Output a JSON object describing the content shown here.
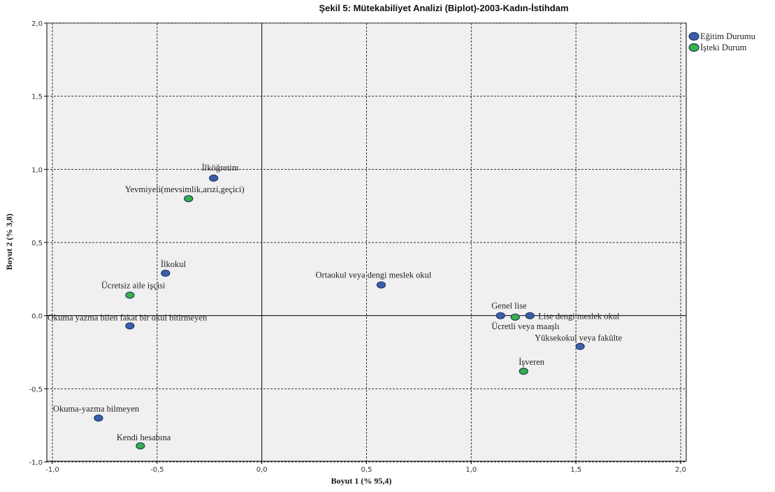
{
  "chart_data": {
    "type": "scatter",
    "title": "Şekil 5: Mütekabiliyet Analizi (Biplot)-2003-Kadın-İstihdam",
    "xlabel": "Boyut 1 (% 95,4)",
    "ylabel": "Boyut 2 (% 3,8)",
    "xlim": [
      -1.0,
      2.0
    ],
    "ylim": [
      -1.0,
      2.0
    ],
    "xticks": [
      "-1,0",
      "-0,5",
      "0,0",
      "0,5",
      "1,0",
      "1,5",
      "2,0"
    ],
    "yticks": [
      "-1,0",
      "-0,5",
      "0,0",
      "0,5",
      "1,0",
      "1,5",
      "2,0"
    ],
    "grid": true,
    "legend_position": "right",
    "series": [
      {
        "name": "Eğitim Durumu",
        "color": "#3b5ea8",
        "points": [
          {
            "label": "İlköğretim",
            "x": -0.23,
            "y": 0.94
          },
          {
            "label": "İlkokul",
            "x": -0.46,
            "y": 0.29
          },
          {
            "label": "Okuma yazma bilen fakat bir okul bitirmeyen",
            "x": -0.63,
            "y": -0.07
          },
          {
            "label": "Okuma-yazma bilmeyen",
            "x": -0.78,
            "y": -0.7
          },
          {
            "label": "Ortaokul veya dengi meslek okul",
            "x": 0.57,
            "y": 0.21
          },
          {
            "label": "Genel lise",
            "x": 1.14,
            "y": 0.0
          },
          {
            "label": "Lise dengi meslek okul",
            "x": 1.28,
            "y": 0.0
          },
          {
            "label": "Yüksekokul veya fakülte",
            "x": 1.52,
            "y": -0.21
          }
        ]
      },
      {
        "name": "İşteki Durum",
        "color": "#35b24a",
        "points": [
          {
            "label": "Yevmiyeli(mevsimlik,arızi,geçici)",
            "x": -0.35,
            "y": 0.8
          },
          {
            "label": "Ücretsiz aile işçisi",
            "x": -0.63,
            "y": 0.14
          },
          {
            "label": "Ücretli veya maaşlı",
            "x": 1.21,
            "y": -0.01
          },
          {
            "label": "İşveren",
            "x": 1.25,
            "y": -0.38
          },
          {
            "label": "Kendi hesabına",
            "x": -0.58,
            "y": -0.89
          }
        ]
      }
    ]
  }
}
